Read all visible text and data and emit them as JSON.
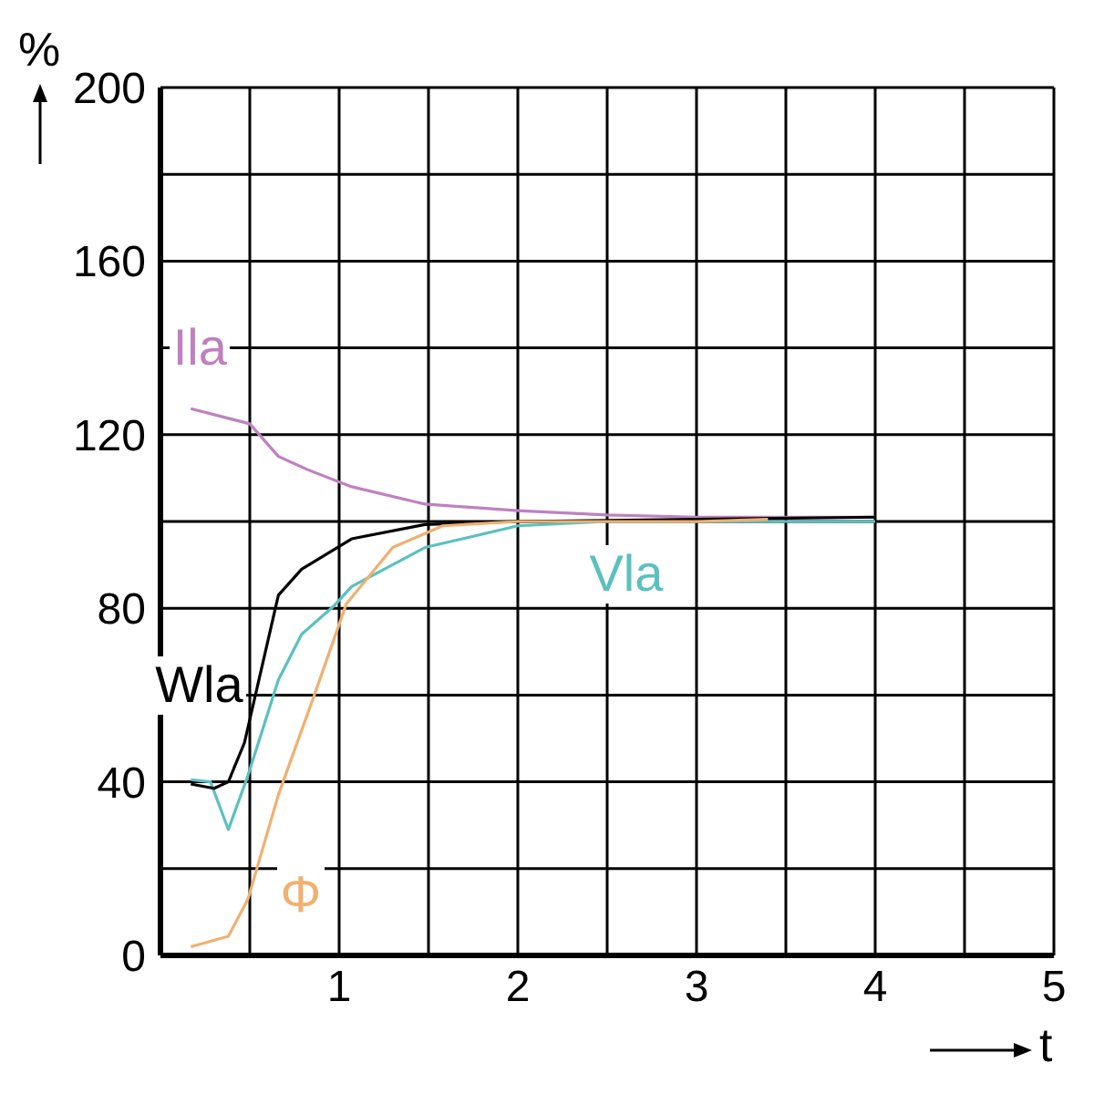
{
  "chart_data": {
    "type": "line",
    "xlabel": "t",
    "ylabel": "%",
    "xlim": [
      0,
      5
    ],
    "xticks": [
      {
        "value": 0.5,
        "label": null
      },
      1,
      {
        "value": 1.5,
        "label": null
      },
      2,
      {
        "value": 2.5,
        "label": null
      },
      3,
      {
        "value": 3.5,
        "label": null
      },
      4,
      {
        "value": 4.5,
        "label": null
      },
      5
    ],
    "ylim": [
      0,
      200
    ],
    "yticks": [
      0,
      {
        "value": 20,
        "label": null
      },
      40,
      {
        "value": 60,
        "label": null
      },
      80,
      {
        "value": 100,
        "label": null
      },
      120,
      {
        "value": 140,
        "label": null
      },
      160,
      {
        "value": 180,
        "label": null
      },
      200
    ],
    "grid": true,
    "legend": false,
    "marker": "none",
    "line_style": "solid",
    "series": [
      {
        "name": "Ila",
        "color": "#c080c0",
        "x": [
          0.17,
          0.5,
          0.66,
          0.82,
          1.07,
          1.48,
          2,
          2.5,
          3,
          4
        ],
        "values": [
          126,
          122.5,
          115,
          112,
          108,
          104,
          102.5,
          101.5,
          101,
          101
        ]
      },
      {
        "name": "Vla",
        "color": "#5bc0c0",
        "x": [
          0.17,
          0.28,
          0.38,
          0.49,
          0.66,
          0.79,
          0.97,
          1.07,
          1.48,
          2,
          2.5,
          3,
          4
        ],
        "values": [
          40.5,
          40,
          29,
          41.5,
          63.5,
          74,
          80.5,
          85,
          94,
          99,
          100,
          100,
          100
        ]
      },
      {
        "name": "Wla",
        "color": "#000000",
        "x": [
          0.17,
          0.3,
          0.38,
          0.47,
          0.66,
          0.79,
          1.07,
          1.48,
          2,
          3,
          4
        ],
        "values": [
          39.5,
          38.5,
          40,
          49,
          83,
          89,
          96,
          99.3,
          100,
          100.5,
          101
        ]
      },
      {
        "name": "Φ",
        "color": "#f0b070",
        "x": [
          0.17,
          0.38,
          0.49,
          0.66,
          0.87,
          1.04,
          1.3,
          1.58,
          2,
          3,
          3.4
        ],
        "values": [
          2,
          4.4,
          13,
          37,
          61,
          81,
          94,
          99,
          100,
          100,
          100.5
        ]
      }
    ]
  }
}
